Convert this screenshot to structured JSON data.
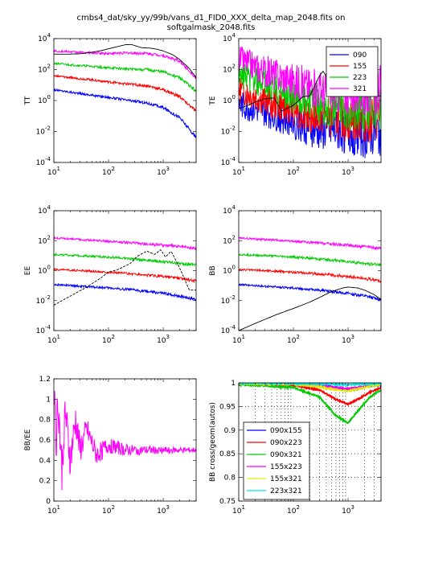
{
  "figure": {
    "title_line1": "cmbs4_dat/sky_yy/99b/vans_d1_FID0_XXX_delta_map_2048.fits on",
    "title_line2": "softgalmask_2048.fits"
  },
  "legend_bands": [
    "090",
    "155",
    "223",
    "321"
  ],
  "legend_cross": [
    "090x155",
    "090x223",
    "090x321",
    "155x223",
    "155x321",
    "223x321"
  ],
  "colors": {
    "090": "#0000ff",
    "155": "#ff0000",
    "223": "#00cc00",
    "321": "#ff00ff",
    "model": "#000000",
    "090x155": "#0000ff",
    "090x223": "#ff0000",
    "090x321": "#00cc00",
    "155x223": "#ff00ff",
    "155x321": "#e6e600",
    "223x321": "#00e6e6"
  },
  "chart_data": [
    {
      "id": "TT",
      "type": "line",
      "ylabel": "TT",
      "xscale": "log",
      "yscale": "log",
      "xlim": [
        10,
        4000
      ],
      "ylim": [
        0.0001,
        10000
      ],
      "xticks": [
        "10^1",
        "10^2",
        "10^3"
      ],
      "yticks": [
        "10^4",
        "10^2",
        "10^0",
        "10^-2",
        "10^-4"
      ],
      "series": [
        {
          "name": "090",
          "x": [
            10,
            20,
            50,
            100,
            200,
            500,
            1000,
            2000,
            4000
          ],
          "y": [
            5,
            3.5,
            2.2,
            1.6,
            1.1,
            0.7,
            0.35,
            0.08,
            0.004
          ]
        },
        {
          "name": "155",
          "x": [
            10,
            20,
            50,
            100,
            200,
            500,
            1000,
            2000,
            4000
          ],
          "y": [
            40,
            30,
            22,
            16,
            12,
            9,
            5,
            1.8,
            0.2
          ]
        },
        {
          "name": "223",
          "x": [
            10,
            20,
            50,
            100,
            200,
            500,
            1000,
            2000,
            4000
          ],
          "y": [
            250,
            200,
            160,
            130,
            110,
            100,
            70,
            30,
            4
          ]
        },
        {
          "name": "321",
          "x": [
            10,
            20,
            50,
            100,
            200,
            500,
            1000,
            2000,
            4000
          ],
          "y": [
            1600,
            1400,
            1200,
            1100,
            1200,
            1100,
            800,
            350,
            30
          ]
        },
        {
          "name": "model",
          "x": [
            10,
            20,
            30,
            50,
            80,
            120,
            200,
            260,
            400,
            600,
            800,
            1000,
            1500,
            2000,
            3000,
            4000
          ],
          "y": [
            1000,
            1000,
            1050,
            1300,
            1800,
            2600,
            4000,
            4200,
            2600,
            2400,
            2000,
            1600,
            900,
            450,
            120,
            30
          ]
        }
      ]
    },
    {
      "id": "TE",
      "type": "line",
      "ylabel": "TE",
      "xscale": "log",
      "yscale": "log",
      "xlim": [
        10,
        4000
      ],
      "ylim": [
        0.0001,
        10000
      ],
      "xticks": [
        "10^1",
        "10^2",
        "10^3"
      ],
      "yticks": [
        "10^4",
        "10^2",
        "10^0",
        "10^-2",
        "10^-4"
      ],
      "legend": "top-right",
      "series": [
        {
          "name": "090",
          "x": [
            10,
            30,
            100,
            300,
            1000,
            2000,
            4000
          ],
          "y": [
            0.5,
            0.2,
            0.05,
            0.01,
            0.01,
            0.005,
            0.01
          ]
        },
        {
          "name": "155",
          "x": [
            10,
            30,
            100,
            300,
            1000,
            2000,
            4000
          ],
          "y": [
            5,
            1,
            0.3,
            0.1,
            0.05,
            0.05,
            0.1
          ]
        },
        {
          "name": "223",
          "x": [
            10,
            30,
            100,
            300,
            1000,
            2000,
            4000
          ],
          "y": [
            50,
            10,
            2,
            0.5,
            0.3,
            0.3,
            0.5
          ]
        },
        {
          "name": "321",
          "x": [
            10,
            30,
            100,
            300,
            1000,
            2000,
            4000
          ],
          "y": [
            500,
            80,
            20,
            5,
            3,
            3,
            5
          ]
        },
        {
          "name": "model",
          "x": [
            10,
            15,
            20,
            30,
            45,
            60,
            100,
            150,
            200,
            300,
            350,
            500,
            700,
            1000,
            1500
          ],
          "y": [
            0.3,
            0.5,
            0.8,
            1.3,
            1.5,
            0.2,
            0.5,
            1.8,
            2,
            40,
            80,
            8,
            3,
            30,
            2
          ]
        }
      ]
    },
    {
      "id": "EE",
      "type": "line",
      "ylabel": "EE",
      "xscale": "log",
      "yscale": "log",
      "xlim": [
        10,
        4000
      ],
      "ylim": [
        0.0001,
        10000
      ],
      "xticks": [
        "10^1",
        "10^2",
        "10^3"
      ],
      "yticks": [
        "10^4",
        "10^2",
        "10^0",
        "10^-2",
        "10^-4"
      ],
      "series": [
        {
          "name": "090",
          "x": [
            10,
            30,
            100,
            300,
            1000,
            2000,
            4000
          ],
          "y": [
            0.12,
            0.09,
            0.07,
            0.05,
            0.03,
            0.02,
            0.012
          ]
        },
        {
          "name": "155",
          "x": [
            10,
            30,
            100,
            300,
            1000,
            2000,
            4000
          ],
          "y": [
            1.2,
            1,
            0.8,
            0.6,
            0.4,
            0.3,
            0.2
          ]
        },
        {
          "name": "223",
          "x": [
            10,
            30,
            100,
            300,
            1000,
            2000,
            4000
          ],
          "y": [
            12,
            10,
            8,
            6,
            4,
            3,
            2.5
          ]
        },
        {
          "name": "321",
          "x": [
            10,
            30,
            100,
            300,
            1000,
            2000,
            4000
          ],
          "y": [
            150,
            120,
            90,
            70,
            50,
            40,
            30
          ]
        },
        {
          "name": "model",
          "x": [
            10,
            20,
            40,
            70,
            100,
            150,
            250,
            350,
            500,
            700,
            900,
            1100,
            1400,
            2000,
            3000
          ],
          "y": [
            0.005,
            0.02,
            0.08,
            0.3,
            0.8,
            1.2,
            3,
            10,
            20,
            12,
            25,
            8,
            20,
            1.5,
            0.05
          ]
        }
      ]
    },
    {
      "id": "BB",
      "type": "line",
      "ylabel": "BB",
      "xscale": "log",
      "yscale": "log",
      "xlim": [
        10,
        4000
      ],
      "ylim": [
        0.0001,
        10000
      ],
      "xticks": [
        "10^1",
        "10^2",
        "10^3"
      ],
      "yticks": [
        "10^4",
        "10^2",
        "10^0",
        "10^-2",
        "10^-4"
      ],
      "series": [
        {
          "name": "090",
          "x": [
            10,
            30,
            100,
            300,
            1000,
            2000,
            4000
          ],
          "y": [
            0.12,
            0.09,
            0.07,
            0.05,
            0.03,
            0.02,
            0.012
          ]
        },
        {
          "name": "155",
          "x": [
            10,
            30,
            100,
            300,
            1000,
            2000,
            4000
          ],
          "y": [
            1.2,
            1,
            0.8,
            0.6,
            0.4,
            0.3,
            0.2
          ]
        },
        {
          "name": "223",
          "x": [
            10,
            30,
            100,
            300,
            1000,
            2000,
            4000
          ],
          "y": [
            12,
            10,
            8,
            6,
            4,
            3,
            2.5
          ]
        },
        {
          "name": "321",
          "x": [
            10,
            30,
            100,
            300,
            1000,
            2000,
            4000
          ],
          "y": [
            150,
            120,
            90,
            70,
            50,
            40,
            30
          ]
        },
        {
          "name": "model",
          "x": [
            10,
            20,
            50,
            100,
            200,
            500,
            800,
            1000,
            1500,
            2000,
            3000,
            4000
          ],
          "y": [
            0.0001,
            0.0003,
            0.0012,
            0.003,
            0.008,
            0.04,
            0.07,
            0.08,
            0.07,
            0.05,
            0.025,
            0.012
          ]
        }
      ]
    },
    {
      "id": "BB/EE",
      "type": "line",
      "ylabel": "BB/EE",
      "xscale": "log",
      "yscale": "linear",
      "xlim": [
        10,
        4000
      ],
      "ylim": [
        0,
        1.2
      ],
      "xticks": [
        "10^1",
        "10^2",
        "10^3"
      ],
      "yticks": [
        "1.2",
        "1",
        "0.8",
        "0.6",
        "0.4",
        "0.2",
        "0"
      ],
      "series": [
        {
          "name": "321",
          "x": [
            10,
            11,
            12,
            14,
            16,
            20,
            25,
            30,
            40,
            60,
            100,
            200,
            400,
            1000,
            4000
          ],
          "y": [
            1.2,
            0.6,
            1.0,
            0.3,
            0.9,
            0.4,
            0.8,
            0.5,
            0.7,
            0.45,
            0.55,
            0.5,
            0.5,
            0.5,
            0.5
          ]
        }
      ]
    },
    {
      "id": "BB cross/geom(autos)",
      "type": "line",
      "ylabel": "BB cross/geom(autos)",
      "xscale": "log",
      "yscale": "linear",
      "xlim": [
        10,
        4000
      ],
      "ylim": [
        0.75,
        1.0
      ],
      "xticks": [
        "10^1",
        "10^2",
        "10^3"
      ],
      "yticks": [
        "1",
        "0.95",
        "0.9",
        "0.85",
        "0.8",
        "0.75"
      ],
      "legend": "bottom-left",
      "series": [
        {
          "name": "090x155",
          "x": [
            10,
            100,
            300,
            600,
            1000,
            1500,
            2500,
            4000
          ],
          "y": [
            0.998,
            0.997,
            0.995,
            0.99,
            0.985,
            0.988,
            0.993,
            0.995
          ]
        },
        {
          "name": "090x223",
          "x": [
            10,
            100,
            300,
            600,
            1000,
            1500,
            2500,
            4000
          ],
          "y": [
            0.998,
            0.995,
            0.985,
            0.965,
            0.955,
            0.965,
            0.98,
            0.99
          ]
        },
        {
          "name": "090x321",
          "x": [
            10,
            100,
            300,
            600,
            1000,
            1500,
            2500,
            4000
          ],
          "y": [
            0.997,
            0.99,
            0.97,
            0.93,
            0.915,
            0.94,
            0.97,
            0.985
          ]
        },
        {
          "name": "155x223",
          "x": [
            10,
            100,
            300,
            600,
            1000,
            1500,
            2500,
            4000
          ],
          "y": [
            0.999,
            0.998,
            0.995,
            0.99,
            0.988,
            0.99,
            0.995,
            0.997
          ]
        },
        {
          "name": "155x321",
          "x": [
            10,
            100,
            300,
            600,
            1000,
            1500,
            2500,
            4000
          ],
          "y": [
            0.999,
            0.997,
            0.992,
            0.985,
            0.983,
            0.987,
            0.993,
            0.996
          ]
        },
        {
          "name": "223x321",
          "x": [
            10,
            100,
            300,
            600,
            1000,
            1500,
            2500,
            4000
          ],
          "y": [
            1.0,
            0.999,
            0.998,
            0.997,
            0.996,
            0.997,
            0.998,
            0.999
          ]
        }
      ]
    }
  ]
}
